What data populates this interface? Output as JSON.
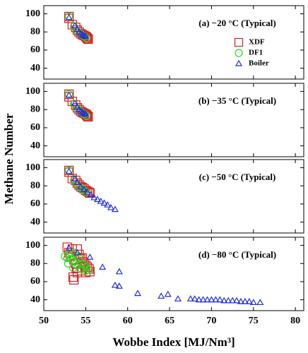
{
  "ylabel": "Methane Number",
  "xlabel": "Wobbe Index [MJ/Nm³]",
  "chart_data": [
    {
      "type": "scatter",
      "title": "(a) −20 °C (Typical)",
      "xlim": [
        50,
        81
      ],
      "ylim": [
        28,
        109
      ],
      "xticks": [
        50,
        55,
        60,
        65,
        70,
        75,
        80
      ],
      "yticks": [
        40,
        60,
        80,
        100
      ],
      "legend": "upper right",
      "series": [
        {
          "name": "XDF",
          "color": "#d62020",
          "marker": "square",
          "x": [
            53.0,
            53.0,
            53.4,
            53.8,
            54.0,
            54.2,
            54.4,
            54.6,
            54.8,
            55.0,
            55.1,
            55.2,
            55.3
          ],
          "values": [
            97,
            95,
            88,
            85,
            82,
            80,
            78,
            77,
            76,
            75,
            74,
            73,
            72
          ]
        },
        {
          "name": "DF1",
          "color": "#22dd22",
          "marker": "circle",
          "x": [
            53.0,
            53.6,
            54.0,
            54.4,
            54.8,
            55.1
          ],
          "values": [
            97,
            86,
            81,
            78,
            75,
            73
          ]
        },
        {
          "name": "Boiler",
          "color": "#1f2fd8",
          "marker": "triangle",
          "x": [
            53.0,
            53.7,
            54.0,
            54.2,
            54.4,
            54.6,
            54.8,
            55.0
          ],
          "values": [
            96,
            87,
            83,
            80,
            78,
            77,
            76,
            75
          ]
        }
      ]
    },
    {
      "type": "scatter",
      "title": "(b) −35 °C (Typical)",
      "xlim": [
        50,
        81
      ],
      "ylim": [
        28,
        109
      ],
      "xticks": [
        50,
        55,
        60,
        65,
        70,
        75,
        80
      ],
      "yticks": [
        40,
        60,
        80,
        100
      ],
      "series": [
        {
          "color": "#d62020",
          "marker": "square",
          "x": [
            53.0,
            53.0,
            53.4,
            53.8,
            54.0,
            54.2,
            54.4,
            54.6,
            54.8,
            55.0,
            55.1,
            55.2,
            55.3
          ],
          "values": [
            97,
            94,
            89,
            85,
            82,
            80,
            78,
            77,
            76,
            75,
            74,
            73,
            72
          ]
        },
        {
          "color": "#22dd22",
          "marker": "circle",
          "x": [
            53.0,
            53.6,
            54.0,
            54.4,
            54.8,
            55.1
          ],
          "values": [
            97,
            86,
            81,
            78,
            75,
            73
          ]
        },
        {
          "color": "#1f2fd8",
          "marker": "triangle",
          "x": [
            53.0,
            53.7,
            54.0,
            54.2,
            54.4,
            54.6,
            54.8,
            55.0
          ],
          "values": [
            96,
            87,
            83,
            80,
            78,
            77,
            76,
            75
          ]
        }
      ]
    },
    {
      "type": "scatter",
      "title": "(c) −50 °C (Typical)",
      "xlim": [
        50,
        81
      ],
      "ylim": [
        28,
        109
      ],
      "xticks": [
        50,
        55,
        60,
        65,
        70,
        75,
        80
      ],
      "yticks": [
        40,
        60,
        80,
        100
      ],
      "series": [
        {
          "color": "#d62020",
          "marker": "square",
          "x": [
            53.0,
            53.0,
            53.4,
            53.8,
            54.0,
            54.2,
            54.4,
            54.6,
            54.8,
            55.0,
            55.2,
            55.4,
            55.5
          ],
          "values": [
            97,
            95,
            88,
            86,
            83,
            81,
            79,
            78,
            77,
            75,
            74,
            73,
            72
          ]
        },
        {
          "color": "#22dd22",
          "marker": "circle",
          "x": [
            53.0,
            53.6,
            54.0,
            54.4,
            54.8,
            55.1
          ],
          "values": [
            97,
            86,
            81,
            78,
            75,
            73
          ]
        },
        {
          "color": "#1f2fd8",
          "marker": "triangle",
          "x": [
            53.0,
            53.7,
            54.0,
            54.4,
            54.8,
            55.2,
            55.6,
            56.0,
            56.4,
            56.8,
            57.2,
            57.6,
            58.0,
            58.5
          ],
          "values": [
            96,
            88,
            84,
            79,
            76,
            73,
            70,
            67,
            65,
            63,
            61,
            59,
            56,
            54
          ]
        }
      ]
    },
    {
      "type": "scatter",
      "title": "(d) −80 °C (Typical)",
      "xlim": [
        50,
        81
      ],
      "ylim": [
        28,
        109
      ],
      "xticks": [
        50,
        55,
        60,
        65,
        70,
        75,
        80
      ],
      "yticks": [
        40,
        60,
        80,
        100
      ],
      "series": [
        {
          "color": "#d62020",
          "marker": "square",
          "x": [
            52.8,
            53.0,
            53.2,
            53.4,
            53.6,
            53.8,
            54.0,
            54.2,
            54.4,
            54.6,
            54.8,
            55.0,
            55.2,
            55.4,
            53.5,
            54.0,
            54.5,
            55.0,
            53.9,
            54.6,
            53.6,
            55.5
          ],
          "values": [
            98,
            92,
            88,
            96,
            84,
            80,
            96,
            90,
            85,
            82,
            80,
            78,
            76,
            74,
            65,
            70,
            72,
            70,
            75,
            86,
            62,
            71
          ]
        },
        {
          "color": "#22dd22",
          "marker": "circle",
          "x": [
            52.5,
            52.8,
            53.0,
            53.3,
            53.6,
            53.9,
            54.2,
            54.5,
            54.8,
            55.1,
            55.4,
            53.5,
            54.0,
            54.5,
            55.0,
            52.9,
            53.7
          ],
          "values": [
            88,
            86,
            90,
            85,
            82,
            88,
            86,
            80,
            78,
            76,
            73,
            75,
            78,
            74,
            72,
            80,
            92
          ]
        },
        {
          "color": "#1f2fd8",
          "marker": "triangle",
          "x": [
            53.0,
            54.0,
            55.5,
            57.0,
            58.5,
            59.0,
            59.0,
            61.2,
            64.0,
            64.8,
            66.0,
            67.5,
            68.0,
            68.5,
            69.0,
            69.5,
            70.0,
            70.5,
            71.0,
            71.5,
            72.0,
            72.5,
            73.0,
            73.5,
            74.0,
            74.5,
            75.0,
            75.8
          ],
          "values": [
            97,
            92,
            87,
            76,
            56,
            71,
            55,
            47,
            44,
            46,
            41,
            41,
            41,
            40,
            40,
            40,
            40,
            40,
            40,
            39,
            39,
            39,
            39,
            38,
            38,
            38,
            37,
            37
          ]
        }
      ]
    }
  ]
}
